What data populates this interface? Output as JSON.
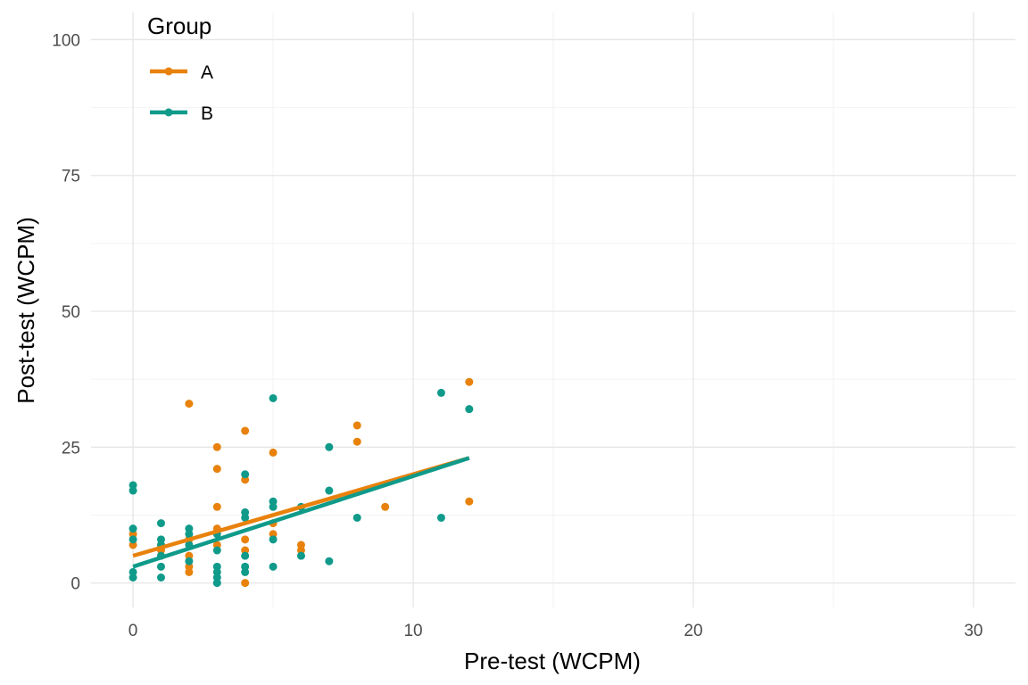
{
  "chart_data": {
    "type": "scatter",
    "xlabel": "Pre-test (WCPM)",
    "ylabel": "Post-test (WCPM)",
    "xlim": [
      -1.5,
      31.5
    ],
    "ylim": [
      -4.5,
      105
    ],
    "x_ticks": [
      0,
      10,
      20,
      30
    ],
    "y_ticks": [
      0,
      25,
      50,
      75,
      100
    ],
    "grid": true,
    "legend": {
      "title": "Group",
      "position": "top-left"
    },
    "series": [
      {
        "name": "A",
        "color": "#E8820C",
        "points": [
          [
            0,
            7
          ],
          [
            0,
            9
          ],
          [
            1,
            6
          ],
          [
            1,
            7
          ],
          [
            2,
            33
          ],
          [
            2,
            2
          ],
          [
            2,
            3
          ],
          [
            2,
            5
          ],
          [
            2,
            8
          ],
          [
            3,
            25
          ],
          [
            3,
            21
          ],
          [
            3,
            14
          ],
          [
            3,
            10
          ],
          [
            3,
            7
          ],
          [
            4,
            28
          ],
          [
            4,
            19
          ],
          [
            4,
            8
          ],
          [
            4,
            6
          ],
          [
            4,
            0
          ],
          [
            5,
            24
          ],
          [
            5,
            9
          ],
          [
            5,
            11
          ],
          [
            6,
            7
          ],
          [
            6,
            6
          ],
          [
            8,
            29
          ],
          [
            8,
            26
          ],
          [
            9,
            14
          ],
          [
            12,
            37
          ],
          [
            12,
            15
          ]
        ],
        "trend": {
          "x": [
            0,
            12
          ],
          "y": [
            5,
            23
          ]
        }
      },
      {
        "name": "B",
        "color": "#0F9A8A",
        "points": [
          [
            0,
            18
          ],
          [
            0,
            17
          ],
          [
            0,
            10
          ],
          [
            0,
            8
          ],
          [
            0,
            2
          ],
          [
            0,
            1
          ],
          [
            1,
            11
          ],
          [
            1,
            8
          ],
          [
            1,
            7
          ],
          [
            1,
            5
          ],
          [
            1,
            3
          ],
          [
            1,
            1
          ],
          [
            2,
            10
          ],
          [
            2,
            9
          ],
          [
            2,
            7
          ],
          [
            2,
            4
          ],
          [
            3,
            9
          ],
          [
            3,
            6
          ],
          [
            3,
            3
          ],
          [
            3,
            2
          ],
          [
            3,
            1
          ],
          [
            3,
            0
          ],
          [
            4,
            20
          ],
          [
            4,
            13
          ],
          [
            4,
            12
          ],
          [
            4,
            5
          ],
          [
            4,
            3
          ],
          [
            4,
            2
          ],
          [
            5,
            34
          ],
          [
            5,
            15
          ],
          [
            5,
            14
          ],
          [
            5,
            8
          ],
          [
            5,
            3
          ],
          [
            6,
            14
          ],
          [
            6,
            5
          ],
          [
            7,
            25
          ],
          [
            7,
            17
          ],
          [
            7,
            4
          ],
          [
            8,
            12
          ],
          [
            11,
            35
          ],
          [
            11,
            12
          ],
          [
            12,
            32
          ]
        ],
        "trend": {
          "x": [
            0,
            12
          ],
          "y": [
            3,
            23
          ]
        }
      }
    ]
  }
}
